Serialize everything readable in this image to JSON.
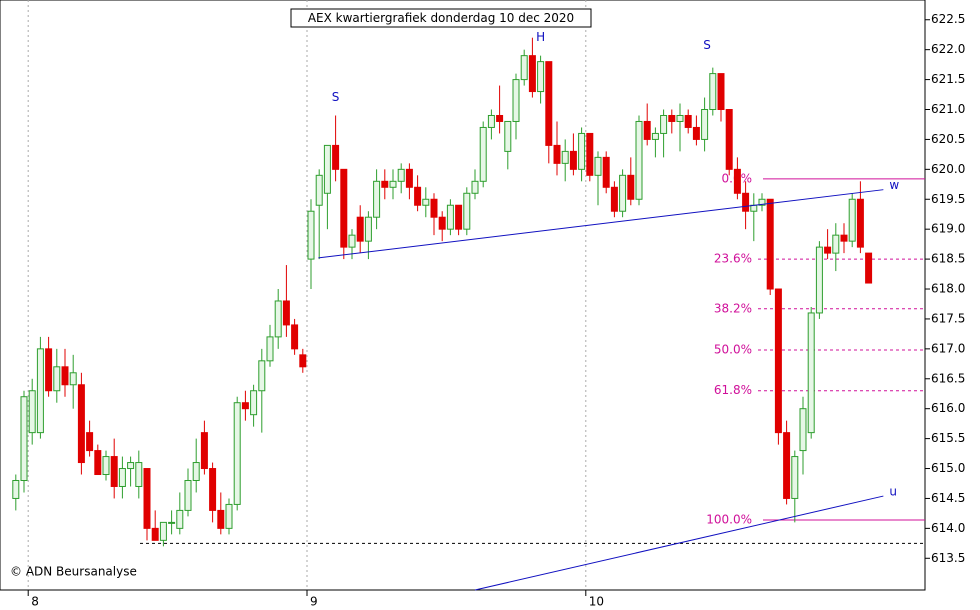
{
  "chart_data": {
    "type": "candlestick",
    "title": "AEX kwartiergrafiek donderdag 10 dec 2020",
    "credit": "© ADN Beursanalyse",
    "ylim": [
      612.97,
      622.83
    ],
    "yticks": [
      613.5,
      {
        "value": 614,
        "label": "614.0"
      },
      614.5,
      {
        "value": 615,
        "label": "615.0"
      },
      615.5,
      {
        "value": 616,
        "label": "616.0"
      },
      616.5,
      {
        "value": 617,
        "label": "617.0"
      },
      617.5,
      {
        "value": 618,
        "label": "618.0"
      },
      618.5,
      {
        "value": 619,
        "label": "619.0"
      },
      619.5,
      {
        "value": 620,
        "label": "620.0"
      },
      620.5,
      {
        "value": 621,
        "label": "621.0"
      },
      621.5,
      {
        "value": 622,
        "label": "622.0"
      },
      622.5
    ],
    "categories": [
      null,
      null,
      "8",
      null,
      null,
      null,
      null,
      null,
      null,
      null,
      null,
      null,
      null,
      null,
      null,
      null,
      null,
      null,
      null,
      null,
      null,
      null,
      null,
      null,
      null,
      null,
      null,
      null,
      null,
      null,
      null,
      null,
      null,
      null,
      null,
      null,
      "9",
      null,
      null,
      null,
      null,
      null,
      null,
      null,
      null,
      null,
      null,
      null,
      null,
      null,
      null,
      null,
      null,
      null,
      null,
      null,
      null,
      null,
      null,
      null,
      null,
      null,
      null,
      null,
      null,
      null,
      null,
      null,
      null,
      null,
      "10",
      null,
      null,
      null,
      null,
      null,
      null,
      null,
      null,
      null,
      null,
      null,
      null,
      null,
      null,
      null,
      null,
      null,
      null,
      null,
      null,
      null,
      null,
      null,
      null,
      null,
      null,
      null,
      null,
      null,
      null,
      null,
      null,
      null,
      null
    ],
    "up_color": "#2e9e2e",
    "down_color": "#e00000",
    "candles": [
      {
        "o": 614.5,
        "h": 614.9,
        "l": 614.3,
        "c": 614.8
      },
      {
        "o": 614.8,
        "h": 616.3,
        "l": 614.6,
        "c": 616.2
      },
      {
        "o": 615.6,
        "h": 616.5,
        "l": 615.4,
        "c": 616.3
      },
      {
        "o": 615.6,
        "h": 617.2,
        "l": 615.5,
        "c": 617.0
      },
      {
        "o": 617.0,
        "h": 617.2,
        "l": 616.2,
        "c": 616.3
      },
      {
        "o": 616.3,
        "h": 617.0,
        "l": 616.1,
        "c": 616.7
      },
      {
        "o": 616.7,
        "h": 617.0,
        "l": 616.2,
        "c": 616.4
      },
      {
        "o": 616.4,
        "h": 616.9,
        "l": 616.0,
        "c": 616.6
      },
      {
        "o": 616.4,
        "h": 616.6,
        "l": 614.9,
        "c": 615.1
      },
      {
        "o": 615.6,
        "h": 615.8,
        "l": 615.2,
        "c": 615.3
      },
      {
        "o": 615.3,
        "h": 615.4,
        "l": 614.9,
        "c": 614.9
      },
      {
        "o": 614.9,
        "h": 615.3,
        "l": 614.8,
        "c": 615.2
      },
      {
        "o": 615.2,
        "h": 615.5,
        "l": 614.5,
        "c": 614.7
      },
      {
        "o": 614.7,
        "h": 615.2,
        "l": 614.5,
        "c": 615.0
      },
      {
        "o": 615.0,
        "h": 615.2,
        "l": 614.7,
        "c": 615.1
      },
      {
        "o": 614.7,
        "h": 615.3,
        "l": 614.5,
        "c": 615.1
      },
      {
        "o": 615.0,
        "h": 615.0,
        "l": 613.8,
        "c": 614.0
      },
      {
        "o": 614.0,
        "h": 614.3,
        "l": 613.8,
        "c": 613.8
      },
      {
        "o": 613.8,
        "h": 614.1,
        "l": 613.7,
        "c": 614.1
      },
      {
        "o": 614.1,
        "h": 614.3,
        "l": 613.9,
        "c": 614.1
      },
      {
        "o": 614.0,
        "h": 614.6,
        "l": 613.9,
        "c": 614.3
      },
      {
        "o": 614.3,
        "h": 615.0,
        "l": 614.2,
        "c": 614.8
      },
      {
        "o": 614.8,
        "h": 615.5,
        "l": 614.6,
        "c": 615.1
      },
      {
        "o": 615.6,
        "h": 615.8,
        "l": 614.9,
        "c": 615.0
      },
      {
        "o": 615.0,
        "h": 615.1,
        "l": 614.1,
        "c": 614.3
      },
      {
        "o": 614.3,
        "h": 614.6,
        "l": 613.9,
        "c": 614.0
      },
      {
        "o": 614.0,
        "h": 614.5,
        "l": 613.9,
        "c": 614.4
      },
      {
        "o": 614.4,
        "h": 616.2,
        "l": 614.3,
        "c": 616.1
      },
      {
        "o": 616.1,
        "h": 616.3,
        "l": 615.8,
        "c": 616.0
      },
      {
        "o": 615.9,
        "h": 616.4,
        "l": 615.7,
        "c": 616.3
      },
      {
        "o": 616.3,
        "h": 617.0,
        "l": 615.6,
        "c": 616.8
      },
      {
        "o": 616.8,
        "h": 617.4,
        "l": 616.7,
        "c": 617.2
      },
      {
        "o": 617.2,
        "h": 618.0,
        "l": 617.0,
        "c": 617.8
      },
      {
        "o": 617.8,
        "h": 618.4,
        "l": 617.2,
        "c": 617.4
      },
      {
        "o": 617.4,
        "h": 617.5,
        "l": 616.9,
        "c": 617.0
      },
      {
        "o": 616.9,
        "h": 617.0,
        "l": 616.6,
        "c": 616.7
      },
      {
        "o": 618.5,
        "h": 619.5,
        "l": 618.0,
        "c": 619.3
      },
      {
        "o": 619.4,
        "h": 620.0,
        "l": 618.5,
        "c": 619.9
      },
      {
        "o": 619.6,
        "h": 620.4,
        "l": 619.0,
        "c": 620.4
      },
      {
        "o": 620.4,
        "h": 620.9,
        "l": 619.8,
        "c": 620.0
      },
      {
        "o": 620.0,
        "h": 620.0,
        "l": 618.5,
        "c": 618.7
      },
      {
        "o": 618.7,
        "h": 619.0,
        "l": 618.5,
        "c": 618.9
      },
      {
        "o": 619.2,
        "h": 619.4,
        "l": 618.6,
        "c": 618.8
      },
      {
        "o": 618.8,
        "h": 619.3,
        "l": 618.5,
        "c": 619.2
      },
      {
        "o": 619.2,
        "h": 620.0,
        "l": 619.0,
        "c": 619.8
      },
      {
        "o": 619.8,
        "h": 620.0,
        "l": 619.5,
        "c": 619.7
      },
      {
        "o": 619.7,
        "h": 620.0,
        "l": 619.5,
        "c": 619.8
      },
      {
        "o": 619.8,
        "h": 620.1,
        "l": 619.6,
        "c": 620.0
      },
      {
        "o": 620.0,
        "h": 620.1,
        "l": 619.5,
        "c": 619.7
      },
      {
        "o": 619.7,
        "h": 619.9,
        "l": 619.3,
        "c": 619.4
      },
      {
        "o": 619.4,
        "h": 619.7,
        "l": 619.2,
        "c": 619.5
      },
      {
        "o": 619.5,
        "h": 619.6,
        "l": 618.9,
        "c": 619.2
      },
      {
        "o": 619.2,
        "h": 619.3,
        "l": 618.8,
        "c": 619.0
      },
      {
        "o": 619.0,
        "h": 619.5,
        "l": 618.9,
        "c": 619.4
      },
      {
        "o": 619.4,
        "h": 619.4,
        "l": 618.9,
        "c": 619.0
      },
      {
        "o": 619.0,
        "h": 619.7,
        "l": 618.9,
        "c": 619.6
      },
      {
        "o": 619.6,
        "h": 620.0,
        "l": 619.5,
        "c": 619.8
      },
      {
        "o": 619.8,
        "h": 620.8,
        "l": 619.7,
        "c": 620.7
      },
      {
        "o": 620.7,
        "h": 621.0,
        "l": 620.5,
        "c": 620.9
      },
      {
        "o": 620.9,
        "h": 621.4,
        "l": 620.6,
        "c": 620.8
      },
      {
        "o": 620.3,
        "h": 620.8,
        "l": 620.0,
        "c": 620.8
      },
      {
        "o": 620.8,
        "h": 621.6,
        "l": 620.5,
        "c": 621.5
      },
      {
        "o": 621.5,
        "h": 622.0,
        "l": 621.4,
        "c": 621.9
      },
      {
        "o": 621.9,
        "h": 622.2,
        "l": 621.2,
        "c": 621.3
      },
      {
        "o": 621.3,
        "h": 621.9,
        "l": 621.1,
        "c": 621.8
      },
      {
        "o": 621.8,
        "h": 621.8,
        "l": 620.1,
        "c": 620.4
      },
      {
        "o": 620.4,
        "h": 620.8,
        "l": 619.9,
        "c": 620.1
      },
      {
        "o": 620.1,
        "h": 620.5,
        "l": 619.8,
        "c": 620.3
      },
      {
        "o": 620.3,
        "h": 620.6,
        "l": 619.9,
        "c": 620.0
      },
      {
        "o": 620.0,
        "h": 620.7,
        "l": 619.8,
        "c": 620.6
      },
      {
        "o": 620.6,
        "h": 620.6,
        "l": 619.8,
        "c": 619.9
      },
      {
        "o": 619.9,
        "h": 620.3,
        "l": 619.4,
        "c": 620.2
      },
      {
        "o": 620.2,
        "h": 620.3,
        "l": 619.6,
        "c": 619.7
      },
      {
        "o": 619.7,
        "h": 619.8,
        "l": 619.2,
        "c": 619.3
      },
      {
        "o": 619.3,
        "h": 620.0,
        "l": 619.2,
        "c": 619.9
      },
      {
        "o": 619.9,
        "h": 620.2,
        "l": 619.4,
        "c": 619.5
      },
      {
        "o": 619.5,
        "h": 620.9,
        "l": 619.4,
        "c": 620.8
      },
      {
        "o": 620.8,
        "h": 621.1,
        "l": 620.4,
        "c": 620.5
      },
      {
        "o": 620.5,
        "h": 620.7,
        "l": 620.2,
        "c": 620.6
      },
      {
        "o": 620.6,
        "h": 621.0,
        "l": 620.2,
        "c": 620.9
      },
      {
        "o": 620.9,
        "h": 621.0,
        "l": 620.6,
        "c": 620.8
      },
      {
        "o": 620.8,
        "h": 621.1,
        "l": 620.3,
        "c": 620.9
      },
      {
        "o": 620.9,
        "h": 621.0,
        "l": 620.6,
        "c": 620.7
      },
      {
        "o": 620.7,
        "h": 620.9,
        "l": 620.4,
        "c": 620.5
      },
      {
        "o": 620.5,
        "h": 621.2,
        "l": 620.3,
        "c": 621.0
      },
      {
        "o": 621.0,
        "h": 621.7,
        "l": 620.9,
        "c": 621.6
      },
      {
        "o": 621.6,
        "h": 621.6,
        "l": 620.8,
        "c": 621.0
      },
      {
        "o": 621.0,
        "h": 621.0,
        "l": 619.9,
        "c": 620.0
      },
      {
        "o": 620.0,
        "h": 620.2,
        "l": 619.5,
        "c": 619.6
      },
      {
        "o": 619.6,
        "h": 619.8,
        "l": 619.0,
        "c": 619.3
      },
      {
        "o": 619.3,
        "h": 619.6,
        "l": 618.8,
        "c": 619.4
      },
      {
        "o": 619.4,
        "h": 619.6,
        "l": 619.3,
        "c": 619.5
      },
      {
        "o": 619.5,
        "h": 619.5,
        "l": 617.9,
        "c": 618.0
      },
      {
        "o": 618.0,
        "h": 618.0,
        "l": 615.4,
        "c": 615.6
      },
      {
        "o": 615.6,
        "h": 615.8,
        "l": 614.4,
        "c": 614.5
      },
      {
        "o": 614.5,
        "h": 615.3,
        "l": 614.1,
        "c": 615.2
      },
      {
        "o": 615.3,
        "h": 616.2,
        "l": 614.9,
        "c": 616.0
      },
      {
        "o": 615.6,
        "h": 617.7,
        "l": 615.5,
        "c": 617.6
      },
      {
        "o": 617.6,
        "h": 618.8,
        "l": 617.5,
        "c": 618.7
      },
      {
        "o": 618.7,
        "h": 619.0,
        "l": 618.5,
        "c": 618.6
      },
      {
        "o": 618.6,
        "h": 619.1,
        "l": 618.3,
        "c": 618.9
      },
      {
        "o": 618.9,
        "h": 619.1,
        "l": 618.6,
        "c": 618.8
      },
      {
        "o": 618.8,
        "h": 619.6,
        "l": 618.7,
        "c": 619.5
      },
      {
        "o": 619.5,
        "h": 619.8,
        "l": 618.6,
        "c": 618.7
      },
      {
        "o": 618.6,
        "h": 618.6,
        "l": 618.1,
        "c": 618.1
      }
    ],
    "fib_levels": [
      {
        "label": "0.0%",
        "value": 619.84,
        "style": "solid"
      },
      {
        "label": "23.6%",
        "value": 618.5,
        "style": "dashed"
      },
      {
        "label": "38.2%",
        "value": 617.67,
        "style": "dashed"
      },
      {
        "label": "50.0%",
        "value": 616.98,
        "style": "dashed"
      },
      {
        "label": "61.8%",
        "value": 616.3,
        "style": "dashed"
      },
      {
        "label": "100.0%",
        "value": 614.14,
        "style": "solid"
      }
    ],
    "fib_color": "#d0109a",
    "support_level": 613.75,
    "trendlines": [
      {
        "label": "w",
        "x": [
          36.9,
          105.8
        ],
        "y": [
          618.52,
          619.66
        ]
      },
      {
        "label": "u",
        "x": [
          56,
          105.8
        ],
        "y": [
          612.97,
          614.54
        ]
      }
    ],
    "trend_color": "#1010c0",
    "annotations": [
      {
        "text": "S",
        "x": 39,
        "y": 621.2
      },
      {
        "text": "H",
        "x": 64,
        "y": 622.2
      },
      {
        "text": "S",
        "x": 84.3,
        "y": 622.07
      }
    ]
  }
}
